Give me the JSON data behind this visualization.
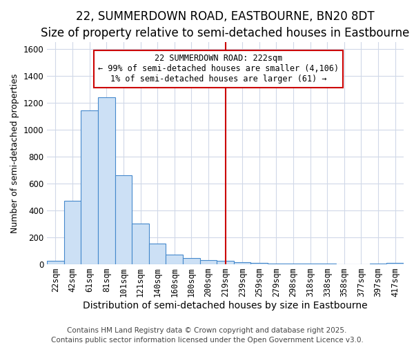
{
  "title1": "22, SUMMERDOWN ROAD, EASTBOURNE, BN20 8DT",
  "title2": "Size of property relative to semi-detached houses in Eastbourne",
  "xlabel": "Distribution of semi-detached houses by size in Eastbourne",
  "ylabel": "Number of semi-detached properties",
  "categories": [
    "22sqm",
    "42sqm",
    "61sqm",
    "81sqm",
    "101sqm",
    "121sqm",
    "140sqm",
    "160sqm",
    "180sqm",
    "200sqm",
    "219sqm",
    "239sqm",
    "259sqm",
    "279sqm",
    "298sqm",
    "318sqm",
    "338sqm",
    "358sqm",
    "377sqm",
    "397sqm",
    "417sqm"
  ],
  "values": [
    25,
    470,
    1140,
    1240,
    660,
    300,
    155,
    70,
    45,
    30,
    25,
    15,
    8,
    5,
    3,
    2,
    2,
    1,
    1,
    2,
    8
  ],
  "bar_color": "#cce0f5",
  "bar_edge_color": "#4488cc",
  "vline_x_index": 10,
  "vline_color": "#cc0000",
  "annotation_text": "22 SUMMERDOWN ROAD: 222sqm\n← 99% of semi-detached houses are smaller (4,106)\n1% of semi-detached houses are larger (61) →",
  "annotation_box_facecolor": "#ffffff",
  "annotation_box_edgecolor": "#cc0000",
  "ylim": [
    0,
    1650
  ],
  "yticks": [
    0,
    200,
    400,
    600,
    800,
    1000,
    1200,
    1400,
    1600
  ],
  "background_color": "#ffffff",
  "plot_bg_color": "#ffffff",
  "grid_color": "#d0d8e8",
  "footer1": "Contains HM Land Registry data © Crown copyright and database right 2025.",
  "footer2": "Contains public sector information licensed under the Open Government Licence v3.0.",
  "title1_fontsize": 12,
  "title2_fontsize": 10,
  "xlabel_fontsize": 10,
  "ylabel_fontsize": 9,
  "tick_fontsize": 8.5,
  "annot_fontsize": 8.5,
  "footer_fontsize": 7.5
}
